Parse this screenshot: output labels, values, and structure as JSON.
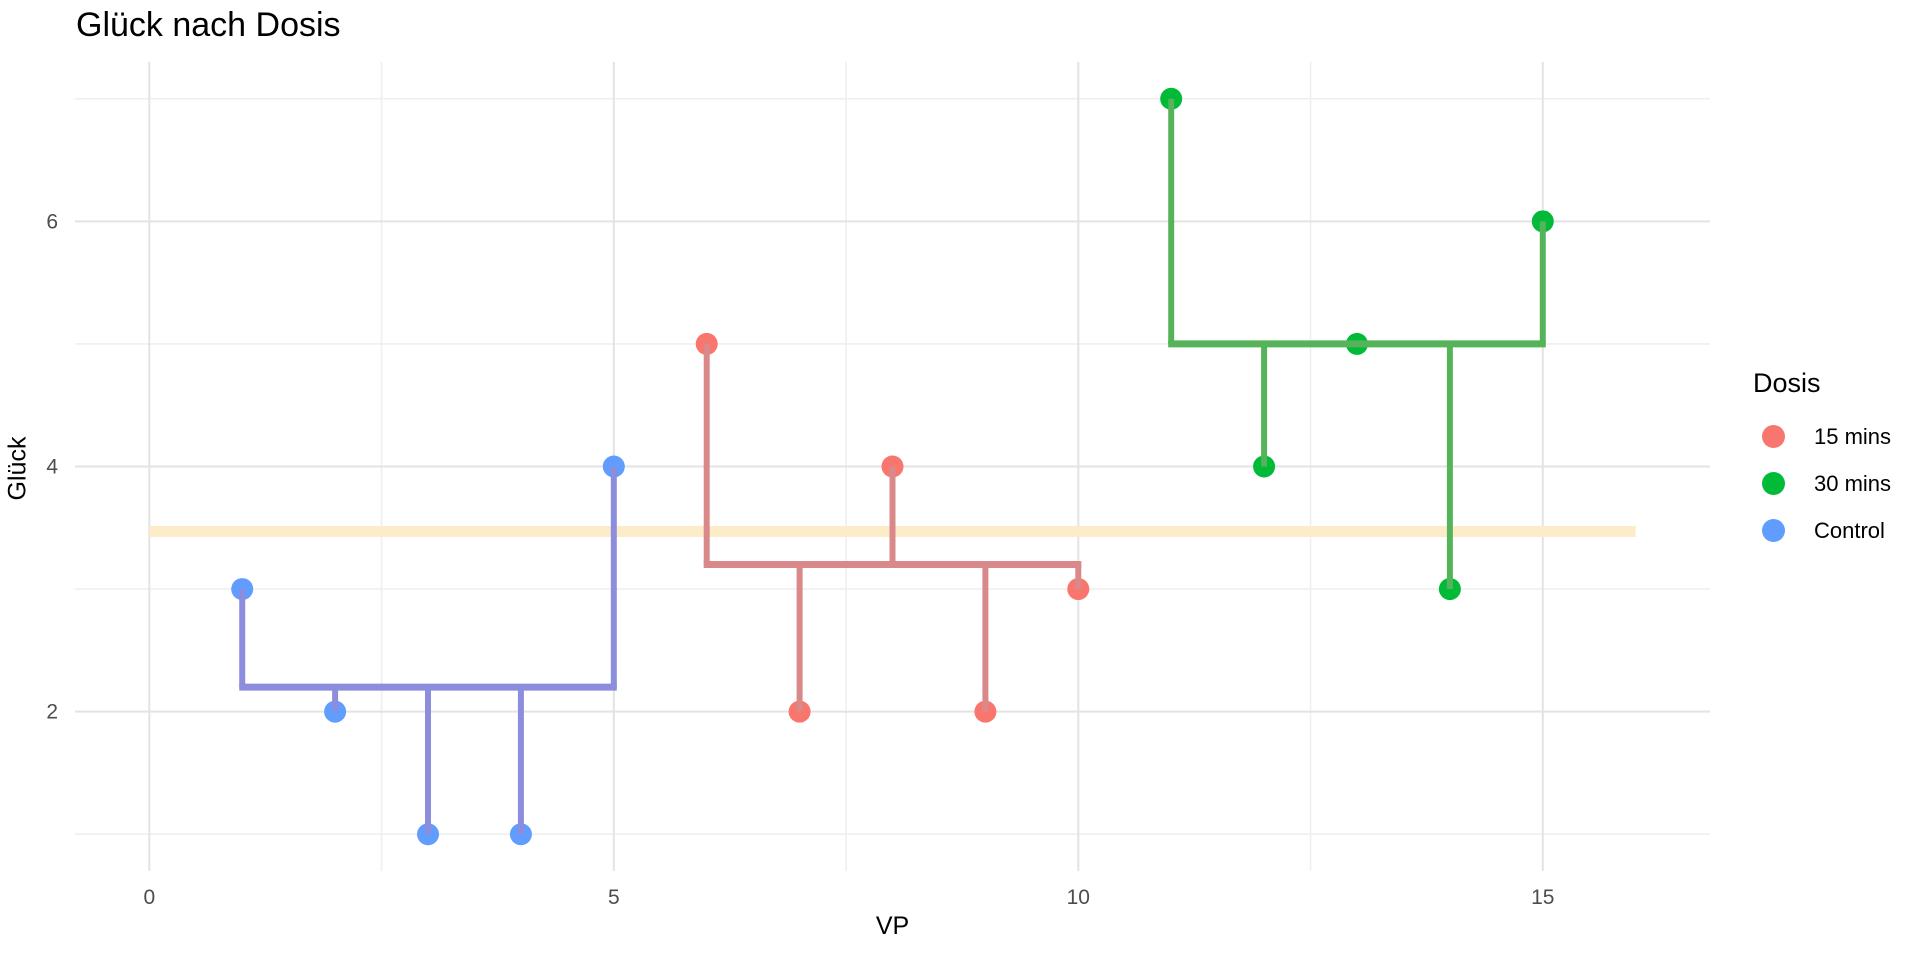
{
  "chart_data": {
    "type": "scatter",
    "title": "Glück nach Dosis",
    "xlabel": "VP",
    "ylabel": "Glück",
    "xlim": [
      -0.8,
      16.8
    ],
    "ylim": [
      0.7,
      7.3
    ],
    "x_major_ticks": [
      0,
      5,
      10,
      15
    ],
    "x_minor_ticks": [
      2.5,
      7.5,
      12.5
    ],
    "y_major_ticks": [
      2,
      4,
      6
    ],
    "y_minor_ticks": [
      1,
      3,
      5,
      7
    ],
    "grid": {
      "major_color": "#E3E3E3",
      "minor_color": "#EFEFEF"
    },
    "grand_mean": {
      "value": 3.47,
      "x_start": 0,
      "x_end": 16,
      "color": "#FDECC8",
      "thickness": 11
    },
    "series": [
      {
        "name": "15 mins",
        "color": "#F8766D",
        "line_color": "#D98989",
        "mean": 3.2,
        "x": [
          6,
          7,
          8,
          9,
          10
        ],
        "y": [
          5,
          2,
          4,
          2,
          3
        ]
      },
      {
        "name": "30 mins",
        "color": "#00BA38",
        "line_color": "#55B45A",
        "mean": 5.0,
        "x": [
          11,
          12,
          13,
          14,
          15
        ],
        "y": [
          7,
          4,
          5,
          3,
          6
        ]
      },
      {
        "name": "Control",
        "color": "#619CFF",
        "line_color": "#8C8DDC",
        "mean": 2.2,
        "x": [
          1,
          2,
          3,
          4,
          5
        ],
        "y": [
          3,
          2,
          1,
          1,
          4
        ]
      }
    ],
    "legend": {
      "title": "Dosis",
      "position": "right"
    },
    "point_radius": 11,
    "mean_line_width": 7,
    "connector_width": 6
  }
}
